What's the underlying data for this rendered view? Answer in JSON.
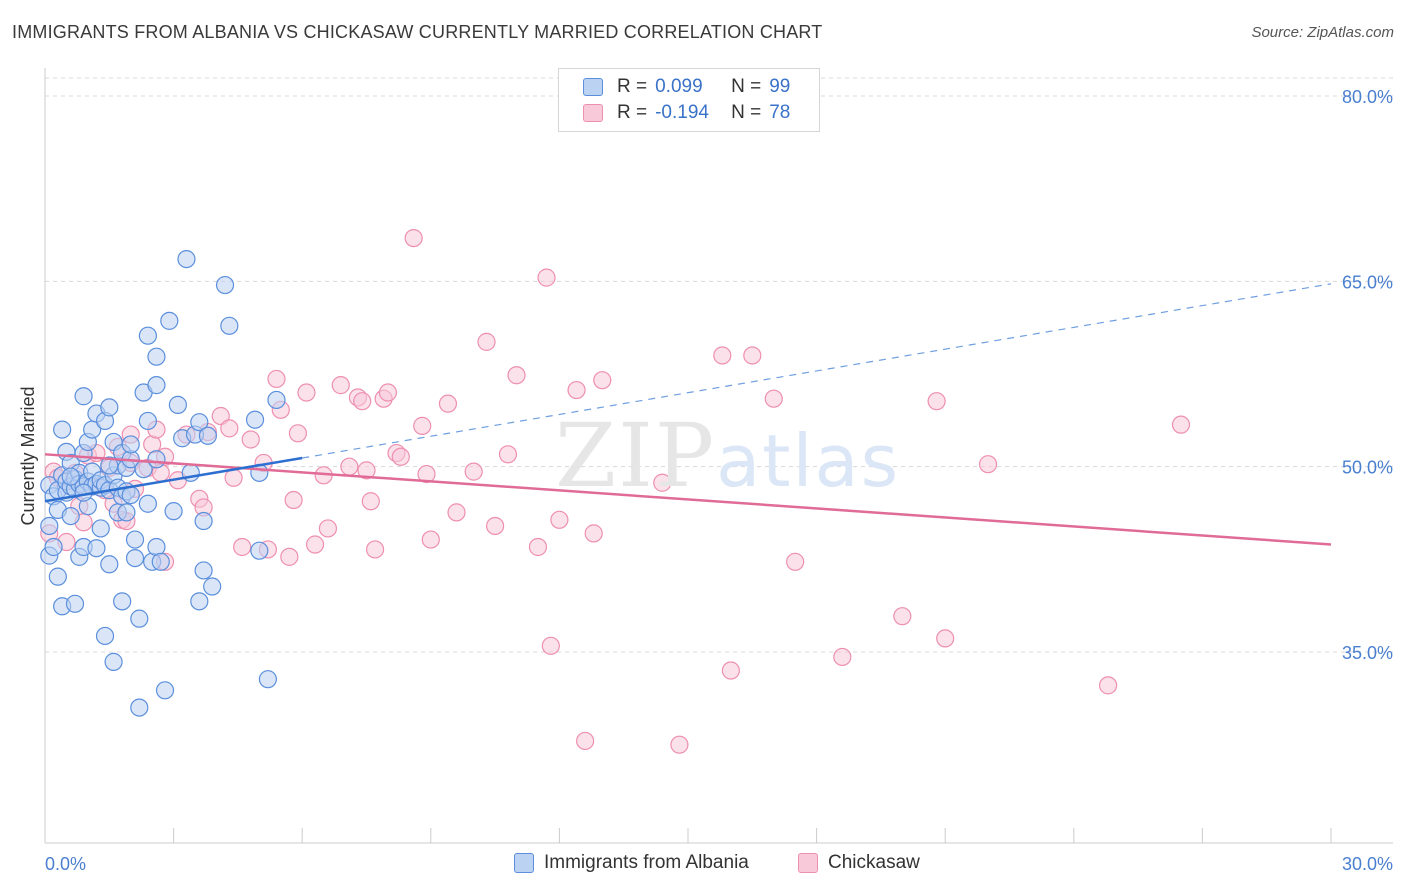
{
  "title": "IMMIGRANTS FROM ALBANIA VS CHICKASAW CURRENTLY MARRIED CORRELATION CHART",
  "source": "Source: ZipAtlas.com",
  "watermark": {
    "zip": "ZIP",
    "atlas": "atlas"
  },
  "legend": {
    "r_label": "R =",
    "n_label": "N =",
    "series": [
      {
        "r": "0.099",
        "n": "99"
      },
      {
        "r": "-0.194",
        "n": "78"
      }
    ]
  },
  "chart_data": {
    "type": "scatter",
    "title": "IMMIGRANTS FROM ALBANIA VS CHICKASAW CURRENTLY MARRIED CORRELATION CHART",
    "xlabel": "",
    "ylabel": "Currently Married",
    "xlim": [
      0,
      30
    ],
    "ylim": [
      20,
      82
    ],
    "x_tick_labels": [
      "0.0%",
      "30.0%"
    ],
    "y_ticks": [
      35,
      50,
      65,
      80
    ],
    "y_tick_labels": [
      "35.0%",
      "50.0%",
      "65.0%",
      "80.0%"
    ],
    "grid": true,
    "legend_position": "top-center",
    "colors": {
      "albania": "#5b8fdc",
      "chickasaw": "#ee8fb0",
      "albania_fill": "#bcd2f3",
      "chickasaw_fill": "#f8c9d8"
    },
    "series": [
      {
        "name": "Immigrants from Albania",
        "r": 0.099,
        "n": 99,
        "trend": {
          "x": [
            0,
            6
          ],
          "y": [
            47.2,
            50.7
          ],
          "dashed_to": [
            30,
            64.8
          ]
        },
        "points": [
          [
            0.1,
            48.5
          ],
          [
            0.1,
            45.2
          ],
          [
            0.1,
            42.8
          ],
          [
            0.2,
            47.6
          ],
          [
            0.2,
            43.5
          ],
          [
            0.3,
            48.1
          ],
          [
            0.3,
            41.1
          ],
          [
            0.3,
            46.5
          ],
          [
            0.4,
            38.7
          ],
          [
            0.4,
            49.3
          ],
          [
            0.4,
            53.0
          ],
          [
            0.5,
            51.2
          ],
          [
            0.5,
            47.9
          ],
          [
            0.5,
            48.8
          ],
          [
            0.6,
            50.3
          ],
          [
            0.6,
            48.4
          ],
          [
            0.6,
            46.0
          ],
          [
            0.7,
            49.0
          ],
          [
            0.7,
            48.2
          ],
          [
            0.7,
            38.9
          ],
          [
            0.8,
            49.5
          ],
          [
            0.8,
            48.6
          ],
          [
            0.8,
            42.7
          ],
          [
            0.9,
            51.1
          ],
          [
            0.9,
            43.5
          ],
          [
            0.9,
            48.4
          ],
          [
            0.9,
            55.7
          ],
          [
            1.0,
            48.8
          ],
          [
            1.0,
            52.0
          ],
          [
            1.0,
            46.8
          ],
          [
            1.1,
            49.6
          ],
          [
            1.1,
            48.4
          ],
          [
            1.1,
            53.0
          ],
          [
            1.2,
            54.3
          ],
          [
            1.2,
            48.6
          ],
          [
            1.2,
            43.4
          ],
          [
            1.3,
            45.0
          ],
          [
            1.3,
            48.3
          ],
          [
            1.3,
            48.9
          ],
          [
            1.4,
            53.7
          ],
          [
            1.4,
            48.5
          ],
          [
            1.4,
            36.3
          ],
          [
            1.5,
            54.8
          ],
          [
            1.5,
            48.1
          ],
          [
            1.5,
            42.1
          ],
          [
            1.6,
            49.3
          ],
          [
            1.6,
            52.0
          ],
          [
            1.6,
            34.2
          ],
          [
            1.7,
            50.1
          ],
          [
            1.7,
            48.3
          ],
          [
            1.7,
            46.3
          ],
          [
            1.8,
            51.1
          ],
          [
            1.8,
            47.6
          ],
          [
            1.8,
            39.1
          ],
          [
            1.9,
            48.0
          ],
          [
            1.9,
            49.9
          ],
          [
            1.9,
            46.3
          ],
          [
            2.0,
            50.6
          ],
          [
            2.0,
            47.7
          ],
          [
            2.0,
            51.8
          ],
          [
            2.1,
            42.6
          ],
          [
            2.1,
            44.1
          ],
          [
            2.2,
            37.7
          ],
          [
            2.2,
            30.5
          ],
          [
            2.3,
            56.0
          ],
          [
            2.3,
            49.8
          ],
          [
            2.4,
            60.6
          ],
          [
            2.4,
            53.7
          ],
          [
            2.4,
            47.0
          ],
          [
            2.5,
            42.3
          ],
          [
            2.6,
            56.6
          ],
          [
            2.6,
            58.9
          ],
          [
            2.6,
            43.5
          ],
          [
            2.6,
            50.6
          ],
          [
            2.7,
            42.3
          ],
          [
            2.8,
            31.9
          ],
          [
            2.9,
            61.8
          ],
          [
            3.0,
            46.4
          ],
          [
            3.1,
            55.0
          ],
          [
            3.2,
            52.3
          ],
          [
            3.3,
            66.8
          ],
          [
            3.4,
            49.5
          ],
          [
            3.5,
            52.6
          ],
          [
            3.6,
            53.6
          ],
          [
            3.6,
            39.1
          ],
          [
            3.7,
            41.6
          ],
          [
            3.7,
            45.6
          ],
          [
            3.8,
            52.5
          ],
          [
            3.9,
            40.3
          ],
          [
            4.2,
            64.7
          ],
          [
            4.3,
            61.4
          ],
          [
            4.9,
            53.8
          ],
          [
            5.0,
            49.5
          ],
          [
            5.0,
            43.2
          ],
          [
            5.2,
            32.8
          ],
          [
            5.4,
            55.4
          ],
          [
            0.6,
            49.2
          ],
          [
            1.5,
            50.1
          ],
          [
            0.9,
            47.9
          ]
        ]
      },
      {
        "name": "Chickasaw",
        "r": -0.194,
        "n": 78,
        "trend": {
          "x": [
            0,
            30
          ],
          "y": [
            51.0,
            43.7
          ]
        },
        "points": [
          [
            0.1,
            44.6
          ],
          [
            0.2,
            49.6
          ],
          [
            0.3,
            49.1
          ],
          [
            0.5,
            43.9
          ],
          [
            0.7,
            49.5
          ],
          [
            0.8,
            46.8
          ],
          [
            0.9,
            45.5
          ],
          [
            1.0,
            50.9
          ],
          [
            1.1,
            48.4
          ],
          [
            1.2,
            51.1
          ],
          [
            1.4,
            48.1
          ],
          [
            1.5,
            49.9
          ],
          [
            1.6,
            47.0
          ],
          [
            1.7,
            51.6
          ],
          [
            1.8,
            45.7
          ],
          [
            1.9,
            45.6
          ],
          [
            2.0,
            50.3
          ],
          [
            2.0,
            52.6
          ],
          [
            2.1,
            48.2
          ],
          [
            2.4,
            49.9
          ],
          [
            2.5,
            51.8
          ],
          [
            2.6,
            53.0
          ],
          [
            2.7,
            49.5
          ],
          [
            2.8,
            50.8
          ],
          [
            2.8,
            42.3
          ],
          [
            3.1,
            48.9
          ],
          [
            3.3,
            52.6
          ],
          [
            3.6,
            47.4
          ],
          [
            3.7,
            46.7
          ],
          [
            3.8,
            52.8
          ],
          [
            4.1,
            54.1
          ],
          [
            4.3,
            53.1
          ],
          [
            4.4,
            49.1
          ],
          [
            4.6,
            43.5
          ],
          [
            4.8,
            52.2
          ],
          [
            5.1,
            50.3
          ],
          [
            5.2,
            43.3
          ],
          [
            5.4,
            57.1
          ],
          [
            5.5,
            54.6
          ],
          [
            5.7,
            42.7
          ],
          [
            5.8,
            47.3
          ],
          [
            5.9,
            52.7
          ],
          [
            6.1,
            56.0
          ],
          [
            6.3,
            43.7
          ],
          [
            6.5,
            49.3
          ],
          [
            6.6,
            45.0
          ],
          [
            6.9,
            56.6
          ],
          [
            7.1,
            50.0
          ],
          [
            7.3,
            55.6
          ],
          [
            7.4,
            55.3
          ],
          [
            7.5,
            49.7
          ],
          [
            7.6,
            47.2
          ],
          [
            7.7,
            43.3
          ],
          [
            7.9,
            55.5
          ],
          [
            8.0,
            56.0
          ],
          [
            8.2,
            51.1
          ],
          [
            8.3,
            50.8
          ],
          [
            8.6,
            68.5
          ],
          [
            8.8,
            53.3
          ],
          [
            8.9,
            49.4
          ],
          [
            9.0,
            44.1
          ],
          [
            9.4,
            55.1
          ],
          [
            9.6,
            46.3
          ],
          [
            10.0,
            49.6
          ],
          [
            10.3,
            60.1
          ],
          [
            10.5,
            45.2
          ],
          [
            10.8,
            51.0
          ],
          [
            11.0,
            57.4
          ],
          [
            11.5,
            43.5
          ],
          [
            11.7,
            65.3
          ],
          [
            11.8,
            35.5
          ],
          [
            12.0,
            45.7
          ],
          [
            12.4,
            56.2
          ],
          [
            12.6,
            27.8
          ],
          [
            12.8,
            44.6
          ],
          [
            13.0,
            57.0
          ],
          [
            14.4,
            48.7
          ],
          [
            14.8,
            27.5
          ]
        ],
        "extra_points": [
          [
            15.8,
            59.0
          ],
          [
            16.0,
            33.5
          ],
          [
            16.5,
            59.0
          ],
          [
            17.0,
            55.5
          ],
          [
            17.5,
            42.3
          ],
          [
            18.6,
            34.6
          ],
          [
            20.0,
            37.9
          ],
          [
            20.8,
            55.3
          ],
          [
            21.0,
            36.1
          ],
          [
            22.0,
            50.2
          ],
          [
            24.8,
            32.3
          ],
          [
            26.5,
            53.4
          ]
        ]
      }
    ]
  }
}
